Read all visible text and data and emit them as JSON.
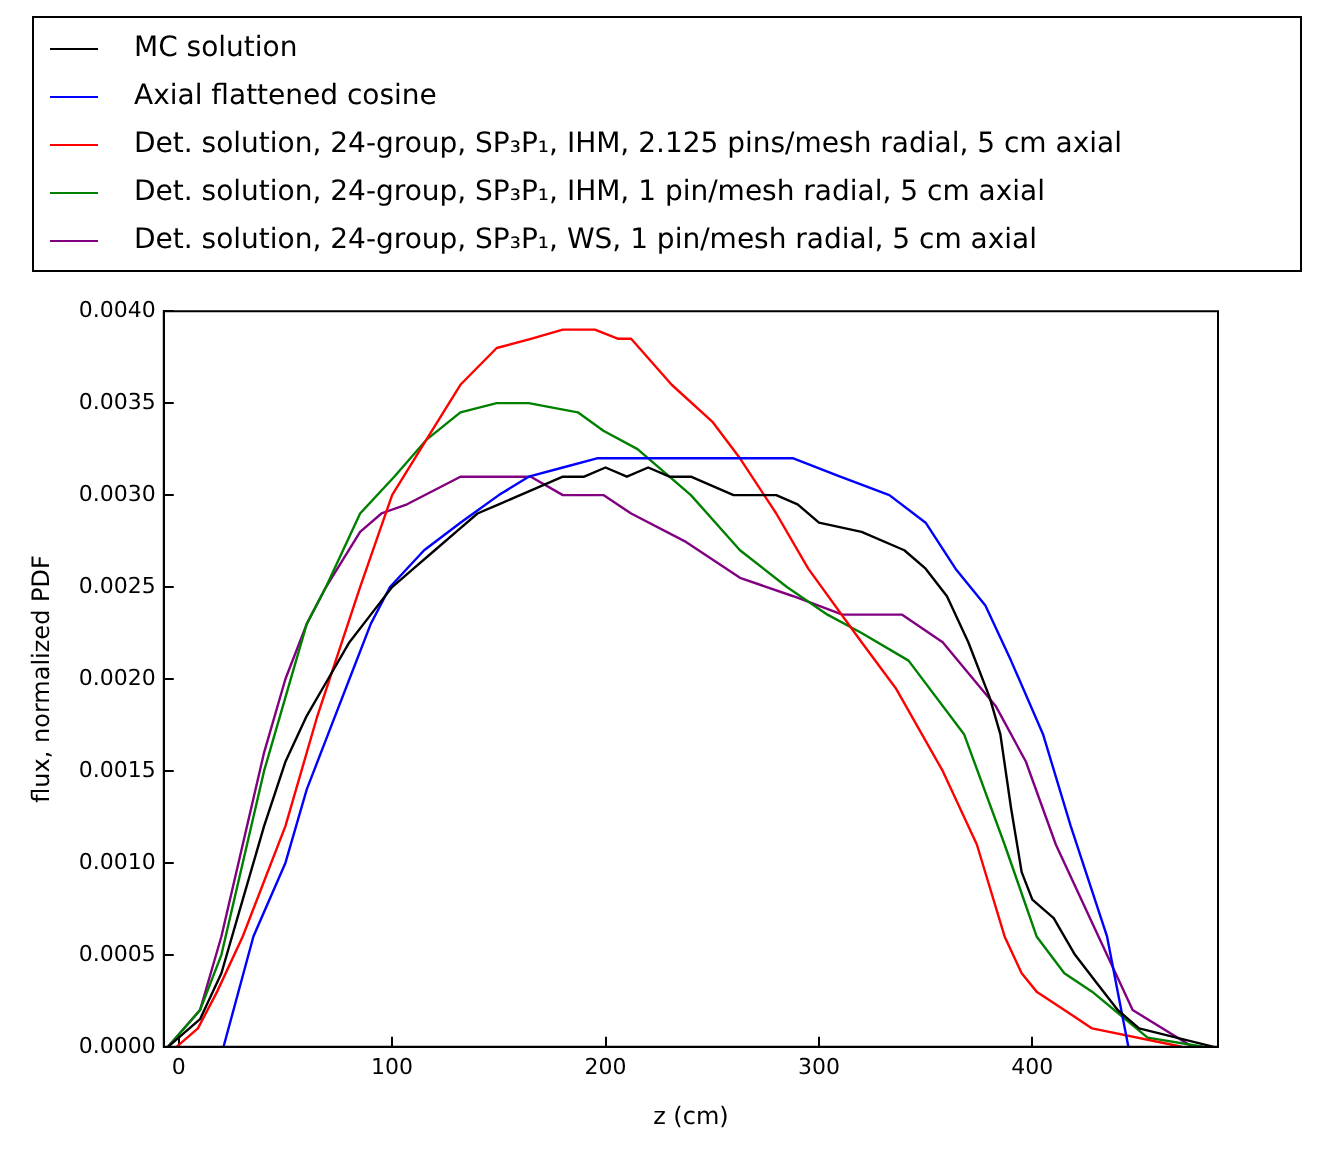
{
  "chart_data": {
    "type": "line",
    "xlabel": "z (cm)",
    "ylabel": "flux, normalized PDF",
    "xlim": [
      -7,
      487
    ],
    "xticks": [
      0,
      100,
      200,
      300,
      400
    ],
    "ylim": [
      0,
      0.004
    ],
    "yticks": [
      {
        "value": 0,
        "label": "0.0000"
      },
      {
        "value": 0.0005,
        "label": "0.0005"
      },
      {
        "value": 0.001,
        "label": "0.0010"
      },
      {
        "value": 0.0015,
        "label": "0.0015"
      },
      {
        "value": 0.002,
        "label": "0.0020"
      },
      {
        "value": 0.0025,
        "label": "0.0025"
      },
      {
        "value": 0.003,
        "label": "0.0030"
      },
      {
        "value": 0.0035,
        "label": "0.0035"
      },
      {
        "value": 0.004,
        "label": "0.0040"
      }
    ],
    "grid": false,
    "legend": "top",
    "marker": "none",
    "line_style": "solid",
    "series": [
      {
        "name": "MC solution",
        "color": "#000000",
        "x": [
          -5,
          10,
          20,
          30,
          40,
          50,
          60,
          70,
          80,
          90,
          100,
          110,
          120,
          130,
          140,
          150,
          160,
          170,
          180,
          190,
          200,
          210,
          220,
          230,
          240,
          250,
          260,
          270,
          280,
          290,
          300,
          320,
          340,
          350,
          360,
          370,
          380,
          385,
          390,
          395,
          400,
          410,
          420,
          430,
          440,
          450,
          485
        ],
        "values": [
          0,
          0.00015,
          0.0004,
          0.0008,
          0.0012,
          0.00155,
          0.0018,
          0.002,
          0.0022,
          0.00235,
          0.0025,
          0.0026,
          0.0027,
          0.0028,
          0.0029,
          0.00295,
          0.003,
          0.00305,
          0.0031,
          0.0031,
          0.00315,
          0.0031,
          0.00315,
          0.0031,
          0.0031,
          0.00305,
          0.003,
          0.003,
          0.003,
          0.00295,
          0.00285,
          0.0028,
          0.0027,
          0.0026,
          0.00245,
          0.0022,
          0.0019,
          0.0017,
          0.0013,
          0.00095,
          0.0008,
          0.0007,
          0.0005,
          0.00035,
          0.0002,
          0.0001,
          0
        ]
      },
      {
        "name": "Axial flattened cosine",
        "color": "#0000ff",
        "x": [
          21,
          35,
          50,
          60,
          70,
          80,
          90,
          99,
          115,
          132,
          150,
          164,
          180,
          196,
          220,
          260,
          288,
          310,
          333,
          350,
          364,
          378,
          390,
          405,
          418,
          435,
          445
        ],
        "values": [
          0,
          0.0006,
          0.001,
          0.0014,
          0.0017,
          0.002,
          0.0023,
          0.0025,
          0.0027,
          0.00285,
          0.003,
          0.0031,
          0.00315,
          0.0032,
          0.0032,
          0.0032,
          0.0032,
          0.0031,
          0.003,
          0.00285,
          0.0026,
          0.0024,
          0.0021,
          0.0017,
          0.0012,
          0.0006,
          0
        ]
      },
      {
        "name": "Det. solution, 24-group, SP₃P₁, IHM, 2.125 pins/mesh radial, 5 cm axial",
        "color": "#ff0000",
        "x": [
          -1,
          9,
          18,
          30,
          40,
          50,
          65,
          85,
          100,
          116,
          132,
          149,
          165,
          180,
          195,
          206,
          212,
          231,
          250,
          263,
          280,
          295,
          320,
          336,
          358,
          374,
          387,
          395,
          402,
          415,
          428,
          470
        ],
        "values": [
          0,
          0.0001,
          0.0003,
          0.0006,
          0.0009,
          0.0012,
          0.0018,
          0.0025,
          0.003,
          0.0033,
          0.0036,
          0.0038,
          0.00385,
          0.0039,
          0.0039,
          0.00385,
          0.00385,
          0.0036,
          0.0034,
          0.0032,
          0.0029,
          0.0026,
          0.0022,
          0.00195,
          0.0015,
          0.0011,
          0.0006,
          0.0004,
          0.0003,
          0.0002,
          0.0001,
          0
        ]
      },
      {
        "name": "Det. solution, 24-group, SP₃P₁, IHM, 1 pin/mesh radial, 5 cm axial",
        "color": "#008000",
        "x": [
          -5,
          10,
          20,
          30,
          40,
          50,
          60,
          69,
          85,
          101,
          116,
          132,
          149,
          164,
          187,
          199,
          215,
          240,
          263,
          285,
          304,
          320,
          342,
          368,
          387,
          402,
          415,
          428,
          454,
          480
        ],
        "values": [
          0,
          0.0002,
          0.0005,
          0.001,
          0.0015,
          0.0019,
          0.0023,
          0.0025,
          0.0029,
          0.0031,
          0.0033,
          0.00345,
          0.0035,
          0.0035,
          0.00345,
          0.00335,
          0.00325,
          0.003,
          0.0027,
          0.0025,
          0.00235,
          0.00225,
          0.0021,
          0.0017,
          0.0011,
          0.0006,
          0.0004,
          0.0003,
          5e-05,
          0
        ]
      },
      {
        "name": "Det. solution, 24-group, SP₃P₁, WS, 1 pin/mesh radial, 5 cm axial",
        "color": "#800080",
        "x": [
          -5,
          10,
          20,
          30,
          40,
          50,
          60,
          69,
          85,
          95,
          107,
          132,
          151,
          165,
          180,
          199,
          212,
          237,
          263,
          288,
          311,
          339,
          358,
          383,
          397,
          411,
          431,
          447,
          475
        ],
        "values": [
          0,
          0.0002,
          0.0006,
          0.0011,
          0.0016,
          0.002,
          0.0023,
          0.0025,
          0.0028,
          0.0029,
          0.00295,
          0.0031,
          0.0031,
          0.0031,
          0.003,
          0.003,
          0.0029,
          0.00275,
          0.00255,
          0.00245,
          0.00235,
          0.00235,
          0.0022,
          0.00185,
          0.00155,
          0.0011,
          0.0006,
          0.0002,
          0
        ]
      }
    ]
  }
}
